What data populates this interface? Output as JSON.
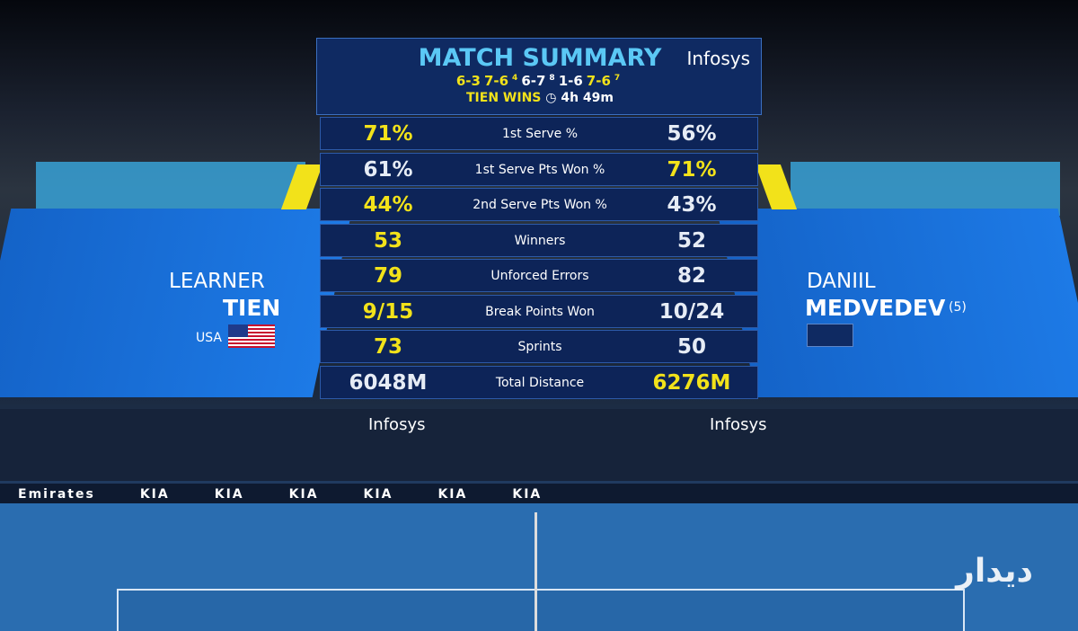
{
  "header": {
    "title": "MATCH SUMMARY",
    "brand": "Infosys",
    "sets": [
      {
        "score": "6-3",
        "winner": "left"
      },
      {
        "score": "7-6",
        "tiebreak": "4",
        "winner": "left"
      },
      {
        "score": "6-7",
        "tiebreak": "8",
        "winner": "right"
      },
      {
        "score": "1-6",
        "winner": "right"
      },
      {
        "score": "7-6",
        "tiebreak": "7",
        "winner": "left"
      }
    ],
    "result": "TIEN WINS",
    "duration": "4h 49m"
  },
  "stats": [
    {
      "left": "71%",
      "label": "1st Serve %",
      "right": "56%",
      "highlight": "left"
    },
    {
      "left": "61%",
      "label": "1st Serve Pts Won %",
      "right": "71%",
      "highlight": "right"
    },
    {
      "left": "44%",
      "label": "2nd Serve Pts Won %",
      "right": "43%",
      "highlight": "left"
    },
    {
      "left": "53",
      "label": "Winners",
      "right": "52",
      "highlight": "left"
    },
    {
      "left": "79",
      "label": "Unforced Errors",
      "right": "82",
      "highlight": "left"
    },
    {
      "left": "9/15",
      "label": "Break Points Won",
      "right": "10/24",
      "highlight": "left"
    },
    {
      "left": "73",
      "label": "Sprints",
      "right": "50",
      "highlight": "left"
    },
    {
      "left": "6048M",
      "label": "Total Distance",
      "right": "6276M",
      "highlight": "right"
    }
  ],
  "players": [
    {
      "first": "LEARNER",
      "last": "TIEN",
      "country": "USA"
    },
    {
      "first": "DANIIL",
      "last": "MEDVEDEV",
      "seed": "(5)"
    }
  ],
  "court": {
    "boards": [
      "Infosys",
      "Infosys"
    ],
    "ads": [
      "Emirates",
      "KIA",
      "KIA",
      "KIA",
      "KIA",
      "KIA",
      "KIA"
    ]
  },
  "watermark": "دیدار"
}
